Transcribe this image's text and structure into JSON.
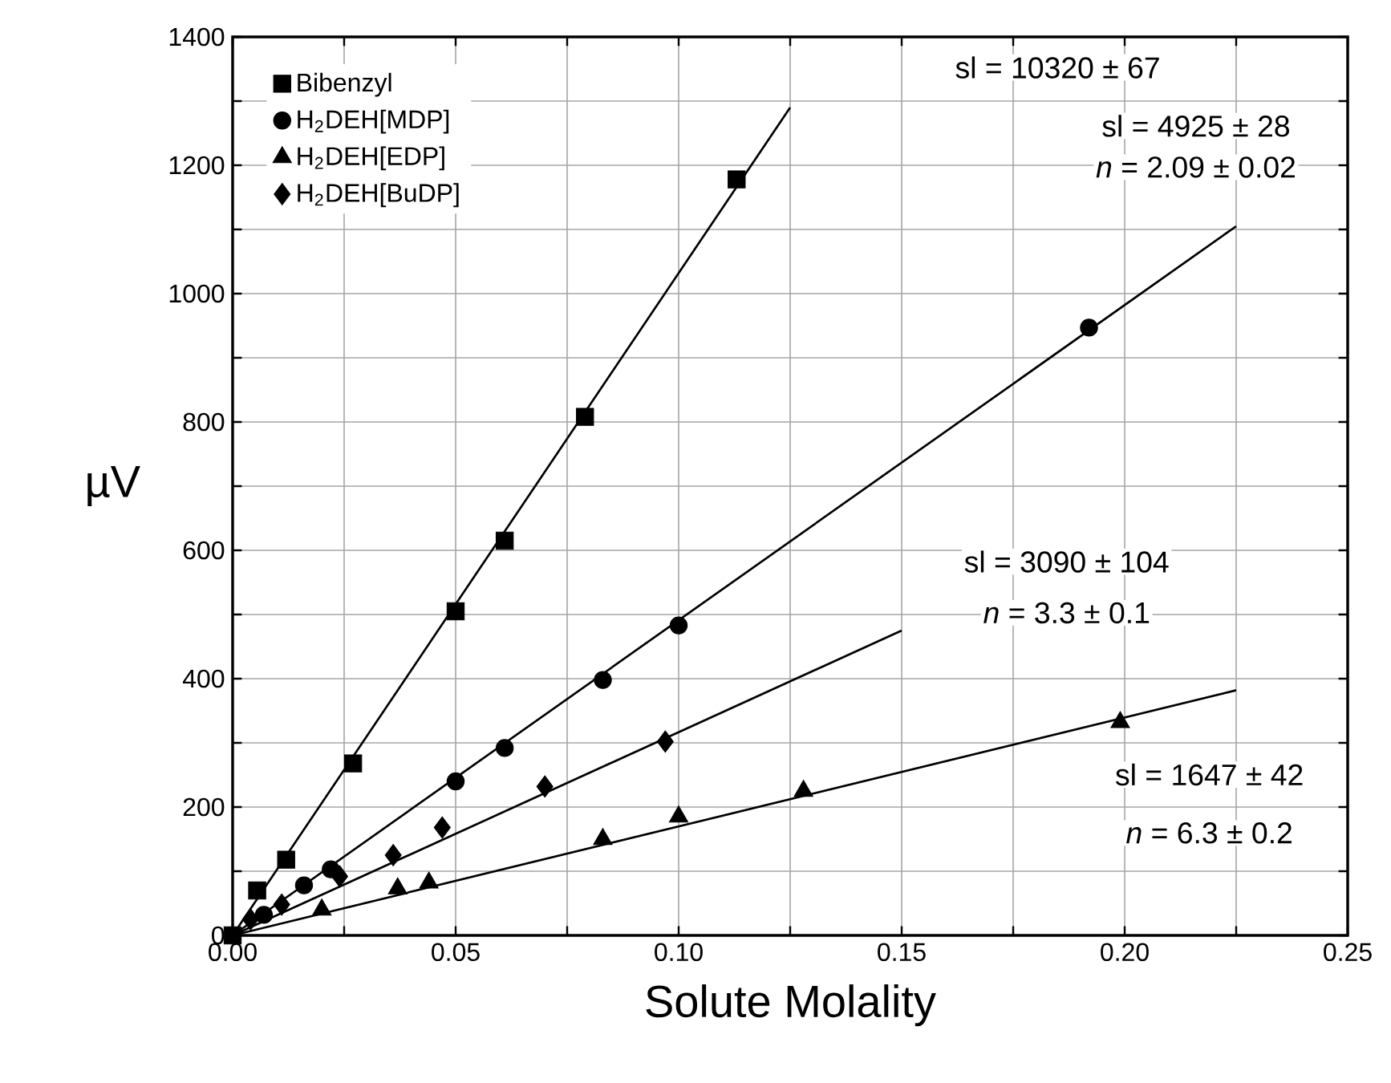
{
  "chart_data": {
    "type": "scatter",
    "xlabel": "Solute Molality",
    "ylabel": "µV",
    "xlim": [
      0,
      0.25
    ],
    "ylim": [
      0,
      1400
    ],
    "xticks": [
      {
        "value": 0,
        "label": "0.00"
      },
      {
        "value": 0.025,
        "label": null
      },
      {
        "value": 0.05,
        "label": "0.05"
      },
      {
        "value": 0.075,
        "label": null
      },
      {
        "value": 0.1,
        "label": "0.10"
      },
      {
        "value": 0.125,
        "label": null
      },
      {
        "value": 0.15,
        "label": "0.15"
      },
      {
        "value": 0.175,
        "label": null
      },
      {
        "value": 0.2,
        "label": "0.20"
      },
      {
        "value": 0.225,
        "label": null
      },
      {
        "value": 0.25,
        "label": "0.25"
      }
    ],
    "yticks": [
      0,
      {
        "value": 100,
        "label": null
      },
      200,
      {
        "value": 300,
        "label": null
      },
      400,
      {
        "value": 500,
        "label": null
      },
      600,
      {
        "value": 700,
        "label": null
      },
      800,
      {
        "value": 900,
        "label": null
      },
      1000,
      {
        "value": 1100,
        "label": null
      },
      1200,
      {
        "value": 1300,
        "label": null
      },
      1400
    ],
    "grid": true,
    "legend": "top left",
    "series": [
      {
        "name": "Bibenzyl",
        "color": "#000000",
        "marker": "square",
        "x": [
          0,
          0.0055,
          0.012,
          0.027,
          0.05,
          0.061,
          0.079,
          0.113
        ],
        "values": [
          0,
          70,
          118,
          268,
          505,
          615,
          808,
          1178
        ]
      },
      {
        "name": "H$_{2}$DEH[MDP]",
        "color": "#000000",
        "marker": "circle",
        "x": [
          0.007,
          0.016,
          0.022,
          0.05,
          0.061,
          0.083,
          0.1,
          0.192
        ],
        "values": [
          32,
          78,
          103,
          240,
          292,
          398,
          483,
          947
        ]
      },
      {
        "name": "H$_{2}$DEH[EDP]",
        "color": "#000000",
        "marker": "triangle",
        "x": [
          0.02,
          0.037,
          0.044,
          0.083,
          0.1,
          0.128,
          0.199
        ],
        "values": [
          40,
          73,
          82,
          150,
          185,
          225,
          332
        ]
      },
      {
        "name": "H$_{2}$DEH[BuDP]",
        "color": "#000000",
        "marker": "diamond",
        "x": [
          0.004,
          0.011,
          0.024,
          0.036,
          0.047,
          0.07,
          0.097
        ],
        "values": [
          25,
          48,
          92,
          125,
          168,
          232,
          302
        ]
      },
      {
        "type": "line",
        "color": "#000000",
        "x": [
          0,
          0.125
        ],
        "values": [
          0,
          1290
        ]
      },
      {
        "type": "line",
        "color": "#000000",
        "x": [
          0,
          0.225
        ],
        "values": [
          0,
          1105
        ]
      },
      {
        "type": "line",
        "color": "#000000",
        "x": [
          0,
          0.225
        ],
        "values": [
          0,
          382
        ]
      },
      {
        "type": "line",
        "color": "#000000",
        "x": [
          0,
          0.15
        ],
        "values": [
          0,
          475
        ]
      }
    ],
    "annotations": [
      "sl = 10320 ± 67",
      "sl = 4925 ± 28",
      "*n* = 2.09 ± 0.02",
      "sl = 3090 ± 104",
      "*n* = 3.3 ± 0.1",
      "sl = 1647 ± 42",
      "*n* = 6.3 ± 0.2"
    ]
  }
}
